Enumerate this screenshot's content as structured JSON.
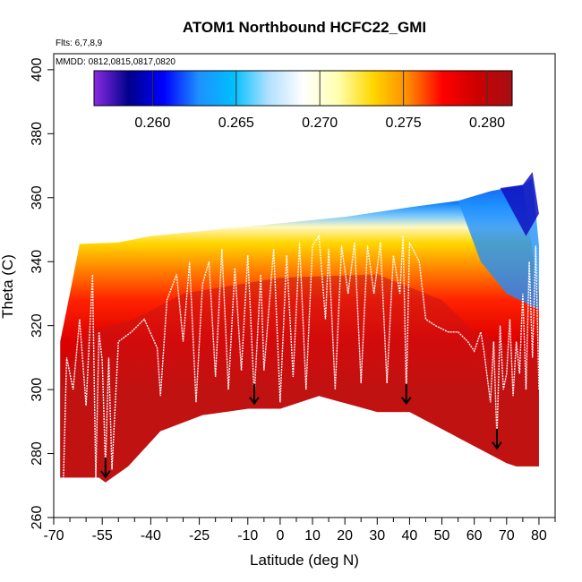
{
  "chart_data": {
    "type": "heatmap",
    "title": "ATOM1 Northbound HCFC22_GMI",
    "annotations": [
      "Flts: 6,7,8,9",
      "MMDD: 0812,0815,0817,0820"
    ],
    "xlabel": "Latitude (deg N)",
    "ylabel": "Theta (C)",
    "xlim": [
      -70,
      85
    ],
    "ylim": [
      260,
      405
    ],
    "x_ticks": [
      -70,
      -55,
      -40,
      -25,
      -10,
      0,
      10,
      20,
      30,
      40,
      50,
      60,
      70,
      80
    ],
    "x_tick_labels": [
      "-70",
      "-55",
      "-40",
      "-25",
      "-10",
      "0",
      "10",
      "20",
      "30",
      "40",
      "50",
      "60",
      "70",
      "80"
    ],
    "x_minor_step": 5,
    "y_ticks": [
      260,
      280,
      300,
      320,
      340,
      360,
      380,
      400
    ],
    "y_tick_labels": [
      "260",
      "280",
      "300",
      "320",
      "340",
      "360",
      "380",
      "400"
    ],
    "colorbar": {
      "range": [
        0.2565,
        0.2815
      ],
      "ticks": [
        0.26,
        0.265,
        0.27,
        0.275,
        0.28
      ],
      "tick_labels": [
        "0.260",
        "0.265",
        "0.270",
        "0.275",
        "0.280"
      ],
      "colors": [
        "#8a2be2",
        "#00008b",
        "#0000ff",
        "#1e90ff",
        "#00bfff",
        "#b0e0ff",
        "#ffffff",
        "#ffffb0",
        "#ffd700",
        "#ff8c00",
        "#ff0000",
        "#cc0000",
        "#a50f15"
      ]
    },
    "grid": false,
    "field_bottom_boundary": [
      [
        -68,
        272.5
      ],
      [
        -56,
        272.5
      ],
      [
        -54,
        271
      ],
      [
        -47,
        276
      ],
      [
        -37,
        287
      ],
      [
        -24,
        292
      ],
      [
        -10,
        294
      ],
      [
        0,
        294
      ],
      [
        12,
        298
      ],
      [
        30,
        293
      ],
      [
        40,
        293
      ],
      [
        55,
        285
      ],
      [
        70,
        277
      ],
      [
        73,
        276
      ],
      [
        80,
        276
      ]
    ],
    "field_top_boundary": [
      [
        -68,
        315
      ],
      [
        -65,
        330
      ],
      [
        -62,
        345.5
      ],
      [
        -50,
        346
      ],
      [
        -40,
        348
      ],
      [
        -20,
        350
      ],
      [
        0,
        352
      ],
      [
        20,
        354
      ],
      [
        40,
        357
      ],
      [
        55,
        359
      ],
      [
        65,
        362
      ],
      [
        75,
        364
      ]
    ],
    "arrows": [
      [
        -54,
        276
      ],
      [
        -8,
        299
      ],
      [
        39,
        299
      ],
      [
        67,
        285
      ]
    ],
    "flight_track": [
      [
        -67,
        272
      ],
      [
        -66,
        310
      ],
      [
        -64,
        300
      ],
      [
        -62,
        322
      ],
      [
        -60,
        295
      ],
      [
        -58,
        336
      ],
      [
        -57,
        272
      ],
      [
        -56,
        318
      ],
      [
        -55,
        309
      ],
      [
        -54,
        276
      ],
      [
        -53,
        310
      ],
      [
        -52,
        275
      ],
      [
        -50,
        315
      ],
      [
        -46,
        318
      ],
      [
        -42,
        322
      ],
      [
        -38,
        313
      ],
      [
        -37,
        298
      ],
      [
        -35,
        328
      ],
      [
        -32,
        336
      ],
      [
        -30,
        315
      ],
      [
        -28,
        340
      ],
      [
        -26,
        296
      ],
      [
        -24,
        333
      ],
      [
        -22,
        340
      ],
      [
        -20,
        304
      ],
      [
        -18,
        344
      ],
      [
        -16,
        300
      ],
      [
        -14,
        338
      ],
      [
        -12,
        306
      ],
      [
        -10,
        342
      ],
      [
        -8,
        298
      ],
      [
        -6,
        336
      ],
      [
        -5,
        306
      ],
      [
        -2,
        344
      ],
      [
        0,
        296
      ],
      [
        2,
        342
      ],
      [
        4,
        304
      ],
      [
        6,
        346
      ],
      [
        8,
        300
      ],
      [
        10,
        345
      ],
      [
        12,
        348
      ],
      [
        14,
        322
      ],
      [
        15,
        344
      ],
      [
        17,
        300
      ],
      [
        19,
        345
      ],
      [
        21,
        330
      ],
      [
        23,
        346
      ],
      [
        25,
        302
      ],
      [
        27,
        345
      ],
      [
        29,
        330
      ],
      [
        31,
        346
      ],
      [
        33,
        302
      ],
      [
        35,
        342
      ],
      [
        37,
        330
      ],
      [
        38,
        348
      ],
      [
        39,
        299
      ],
      [
        40,
        346
      ],
      [
        43,
        340
      ],
      [
        45,
        322
      ],
      [
        48,
        320
      ],
      [
        52,
        318
      ],
      [
        55,
        318
      ],
      [
        58,
        315
      ],
      [
        60,
        312
      ],
      [
        62,
        318
      ],
      [
        63,
        312
      ],
      [
        65,
        296
      ],
      [
        66,
        315
      ],
      [
        67,
        285
      ],
      [
        68,
        320
      ],
      [
        69,
        300
      ],
      [
        70,
        305
      ],
      [
        71,
        322
      ],
      [
        72,
        298
      ],
      [
        73,
        315
      ],
      [
        74,
        305
      ],
      [
        75,
        330
      ],
      [
        76,
        300
      ],
      [
        77,
        340
      ],
      [
        78,
        310
      ],
      [
        79,
        345
      ],
      [
        80,
        300
      ]
    ]
  }
}
